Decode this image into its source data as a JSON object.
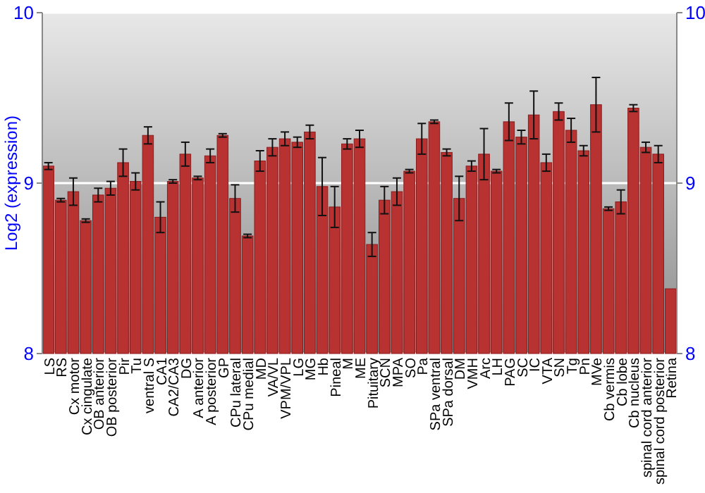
{
  "chart_data": {
    "type": "bar",
    "ylabel": "Log2 (expression)",
    "categories": [
      "LS",
      "RS",
      "Cx motor",
      "Cx cingulate",
      "OB anterior",
      "OB posterior",
      "Pir",
      "Tu",
      "ventral S",
      "CA1",
      "CA2/CA3",
      "DG",
      "A anterior",
      "A posterior",
      "GP",
      "CPu lateral",
      "CPu medial",
      "MD",
      "VA/VL",
      "VPM/VPL",
      "LG",
      "MG",
      "Hb",
      "Pineal",
      "M",
      "ME",
      "Pituitary",
      "SCN",
      "MPA",
      "SO",
      "Pa",
      "SPa ventral",
      "SPa dorsal",
      "DM",
      "VMH",
      "Arc",
      "LH",
      "PAG",
      "SC",
      "IC",
      "VTA",
      "SN",
      "Tg",
      "Pn",
      "MVe",
      "Cb vermis",
      "Cb lobe",
      "Cb nucleus",
      "spinal cord anterior",
      "spinal cord posterior",
      "Retina"
    ],
    "values": [
      9.1,
      8.9,
      8.95,
      8.78,
      8.93,
      8.97,
      9.12,
      9.01,
      9.28,
      8.8,
      9.01,
      9.17,
      9.03,
      9.16,
      9.28,
      8.91,
      8.69,
      9.13,
      9.21,
      9.26,
      9.24,
      9.3,
      8.98,
      8.86,
      9.23,
      9.26,
      8.64,
      8.9,
      8.95,
      9.07,
      9.26,
      9.36,
      9.18,
      8.91,
      9.1,
      9.17,
      9.07,
      9.36,
      9.27,
      9.4,
      9.12,
      9.42,
      9.31,
      9.19,
      9.46,
      8.85,
      8.89,
      9.44,
      9.21,
      9.17,
      8.38
    ],
    "errors": [
      0.02,
      0.01,
      0.08,
      0.01,
      0.04,
      0.04,
      0.08,
      0.05,
      0.05,
      0.09,
      0.01,
      0.07,
      0.01,
      0.04,
      0.01,
      0.08,
      0.01,
      0.06,
      0.05,
      0.04,
      0.03,
      0.04,
      0.17,
      0.12,
      0.03,
      0.05,
      0.07,
      0.08,
      0.08,
      0.01,
      0.09,
      0.01,
      0.02,
      0.13,
      0.03,
      0.15,
      0.01,
      0.11,
      0.04,
      0.14,
      0.05,
      0.05,
      0.07,
      0.03,
      0.16,
      0.01,
      0.07,
      0.02,
      0.03,
      0.05,
      null
    ],
    "color": "#b83232",
    "ylim": [
      8,
      10
    ],
    "yticks": [
      8,
      9,
      10
    ],
    "y2lim": [
      8,
      10
    ],
    "y2ticks": [
      8,
      9,
      10
    ],
    "grid": "y"
  }
}
